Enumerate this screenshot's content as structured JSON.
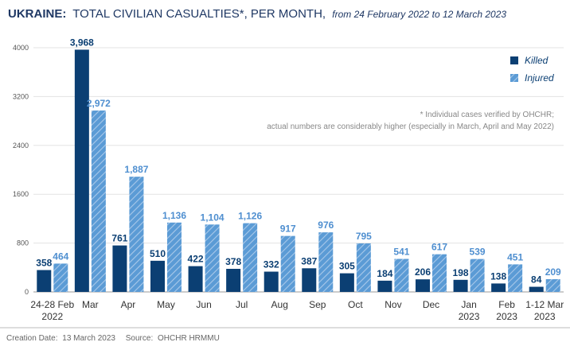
{
  "chart_data": {
    "type": "bar",
    "title_bold": "UKRAINE:",
    "title": "TOTAL CIVILIAN CASUALTIES*, PER MONTH,",
    "subtitle": "from 24 February 2022 to 12 March 2023",
    "categories": [
      [
        "24-28 Feb",
        "2022"
      ],
      [
        "Mar"
      ],
      [
        "Apr"
      ],
      [
        "May"
      ],
      [
        "Jun"
      ],
      [
        "Jul"
      ],
      [
        "Aug"
      ],
      [
        "Sep"
      ],
      [
        "Oct"
      ],
      [
        "Nov"
      ],
      [
        "Dec"
      ],
      [
        "Jan",
        "2023"
      ],
      [
        "Feb",
        "2023"
      ],
      [
        "1-12 Mar",
        "2023"
      ]
    ],
    "series": [
      {
        "name": "Killed",
        "color": "#0b3f73",
        "pattern": "solid",
        "values": [
          358,
          3968,
          761,
          510,
          422,
          378,
          332,
          387,
          305,
          184,
          206,
          198,
          138,
          84
        ],
        "labels": [
          "358",
          "3,968",
          "761",
          "510",
          "422",
          "378",
          "332",
          "387",
          "305",
          "184",
          "206",
          "198",
          "138",
          "84"
        ]
      },
      {
        "name": "Injured",
        "color": "#5b9bd5",
        "pattern": "hatched",
        "values": [
          464,
          2972,
          1887,
          1136,
          1104,
          1126,
          917,
          976,
          795,
          541,
          617,
          539,
          451,
          209
        ],
        "labels": [
          "464",
          "2,972",
          "1,887",
          "1,136",
          "1,104",
          "1,126",
          "917",
          "976",
          "795",
          "541",
          "617",
          "539",
          "451",
          "209"
        ]
      }
    ],
    "yticks": [
      "4000",
      "3200",
      "2400",
      "1600",
      "800",
      "0"
    ],
    "ylim": [
      0,
      4000
    ],
    "grid": true,
    "legend_position": "top-right",
    "note": [
      "* Individual cases verified by OHCHR;",
      "actual numbers are considerably higher (especially in March, April and May 2022)"
    ]
  },
  "footer": {
    "creation_label": "Creation Date:",
    "creation_date": "13 March 2023",
    "source_label": "Source:",
    "source": "OHCHR HRMMU"
  }
}
